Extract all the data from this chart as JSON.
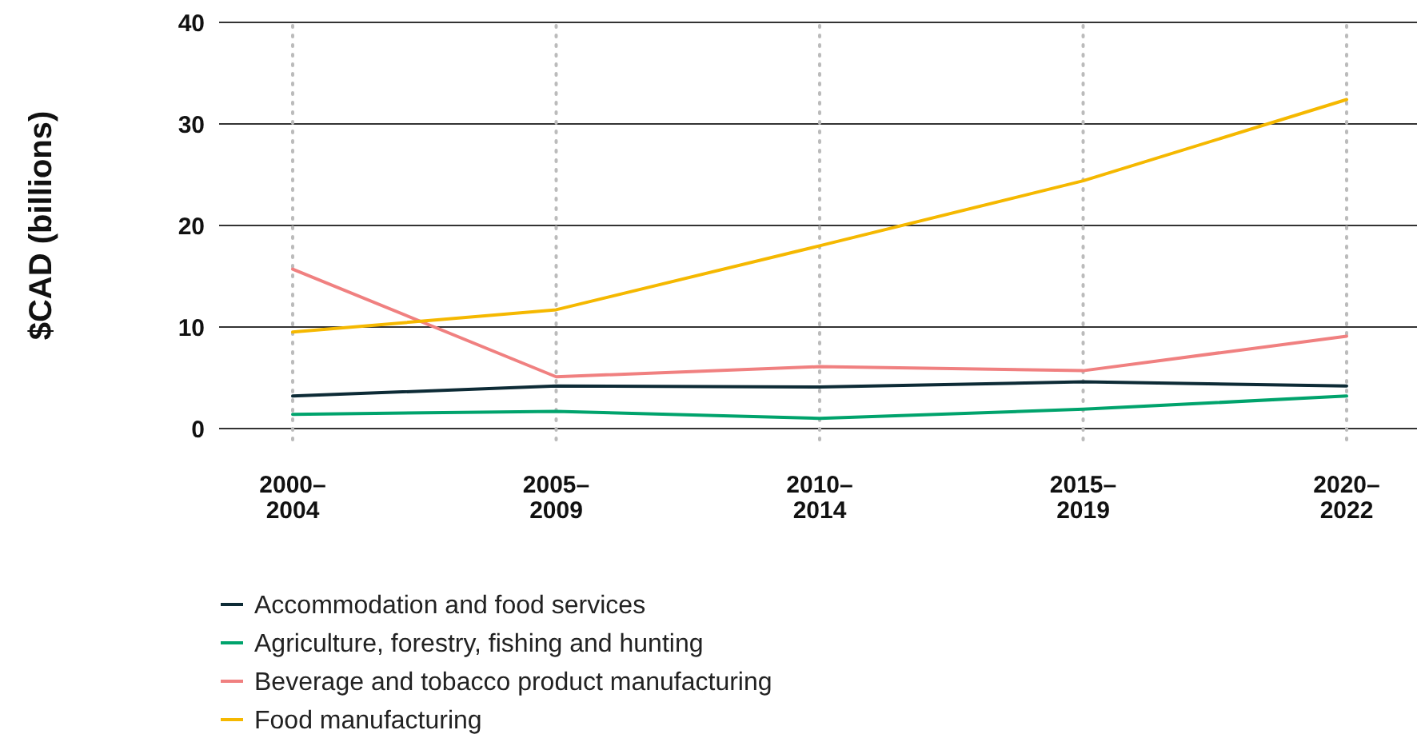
{
  "chart_data": {
    "type": "line",
    "ylabel": "$CAD (billions)",
    "categories": [
      "2000–2004",
      "2005–2009",
      "2010–2014",
      "2015–2019",
      "2020–2022"
    ],
    "series": [
      {
        "name": "Accommodation and food services",
        "color": "#0d2b36",
        "values": [
          3.2,
          4.2,
          4.1,
          4.6,
          4.2
        ]
      },
      {
        "name": "Agriculture, forestry, fishing and hunting",
        "color": "#00a36c",
        "values": [
          1.4,
          1.7,
          1.0,
          1.9,
          3.2
        ]
      },
      {
        "name": "Beverage and tobacco product manufacturing",
        "color": "#f08080",
        "values": [
          15.7,
          5.1,
          6.1,
          5.7,
          9.1
        ]
      },
      {
        "name": "Food manufacturing",
        "color": "#f5b800",
        "values": [
          9.5,
          11.7,
          18.0,
          24.4,
          32.4
        ]
      }
    ],
    "ylim": [
      0,
      40
    ],
    "yticks": [
      0,
      10,
      20,
      30,
      40
    ],
    "grid": true,
    "legend": "bottom",
    "marker": "none",
    "line_style": "solid"
  }
}
